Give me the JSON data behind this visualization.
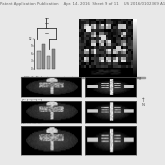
{
  "page_bg": "#e8e8e8",
  "header_text": "Patent Application Publication    Apr. 14, 2016  Sheet 9 of 11    US 2016/0102369 A1",
  "header_fontsize": 2.8,
  "caption_text": "FIG. 9  Bioluminescence imaging, PET/CT imaging, fluorescence imaging",
  "caption_fontsize": 2.5,
  "panel_border": "#666666",
  "dark_bg": "#0a0a0a",
  "light_bg": "#cccccc"
}
